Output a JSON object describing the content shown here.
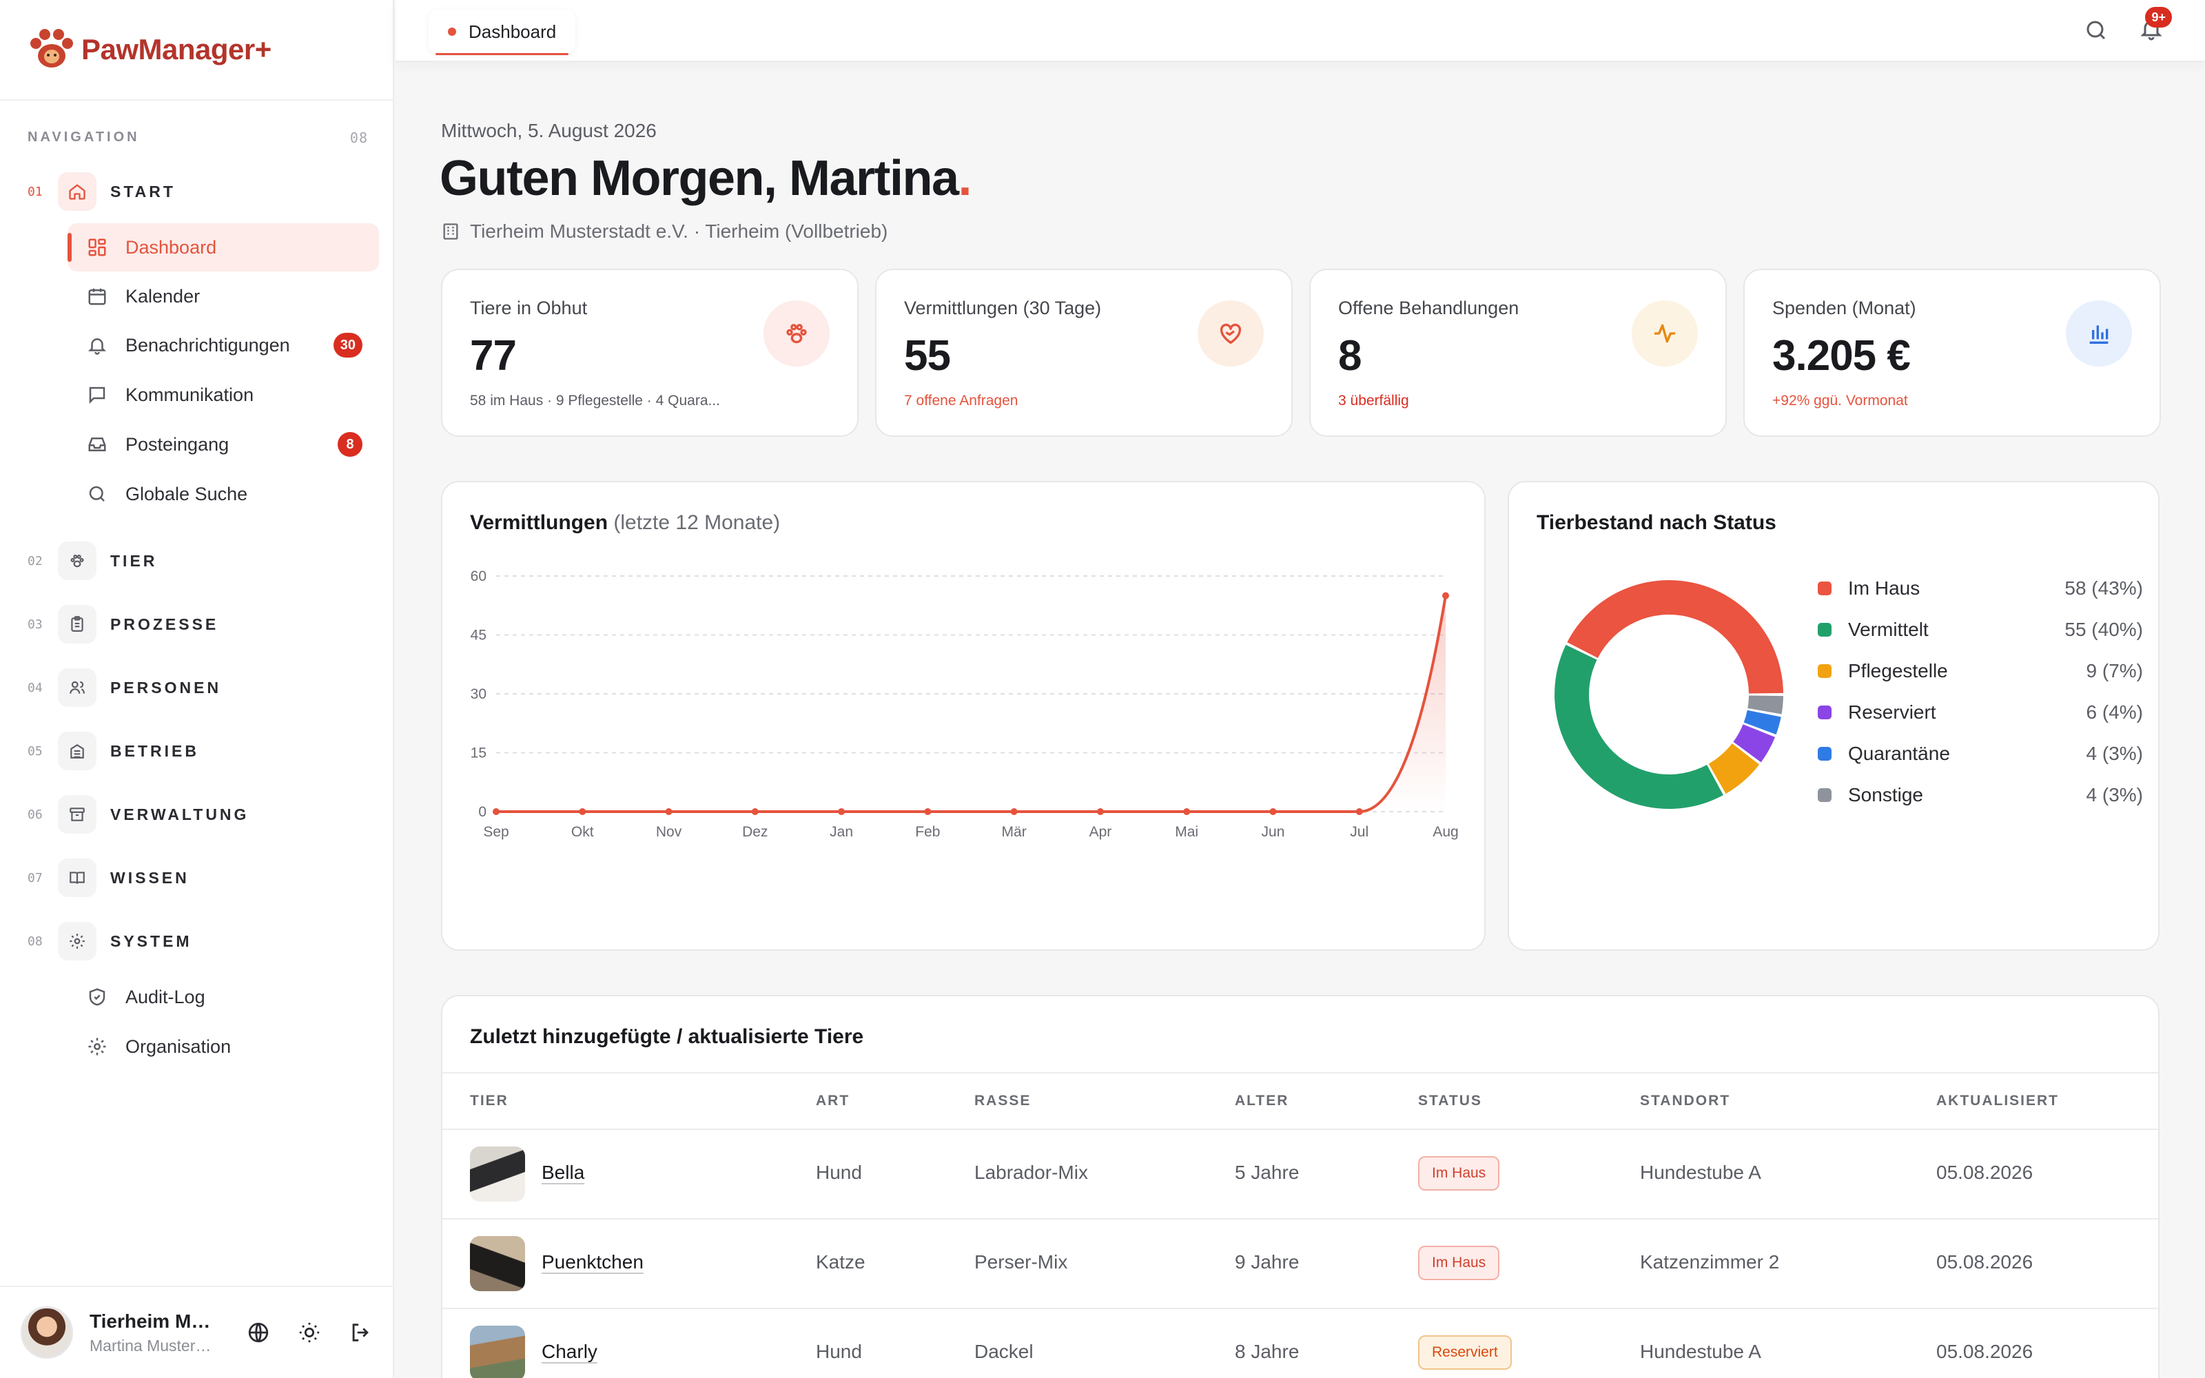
{
  "brand": {
    "name": "PawManager+"
  },
  "nav": {
    "header": "NAVIGATION",
    "count": "08",
    "sections": [
      {
        "num": "01",
        "label": "START",
        "icon": "home-icon"
      },
      {
        "num": "02",
        "label": "TIER",
        "icon": "paw-icon"
      },
      {
        "num": "03",
        "label": "PROZESSE",
        "icon": "clipboard-icon"
      },
      {
        "num": "04",
        "label": "PERSONEN",
        "icon": "users-icon"
      },
      {
        "num": "05",
        "label": "BETRIEB",
        "icon": "building-icon"
      },
      {
        "num": "06",
        "label": "VERWALTUNG",
        "icon": "archive-icon"
      },
      {
        "num": "07",
        "label": "WISSEN",
        "icon": "book-icon"
      },
      {
        "num": "08",
        "label": "SYSTEM",
        "icon": "gear-icon"
      }
    ],
    "start_items": [
      {
        "label": "Dashboard",
        "icon": "grid-icon"
      },
      {
        "label": "Kalender",
        "icon": "calendar-icon"
      },
      {
        "label": "Benachrichtigungen",
        "icon": "bell-icon",
        "badge": "30"
      },
      {
        "label": "Kommunikation",
        "icon": "message-icon"
      },
      {
        "label": "Posteingang",
        "icon": "inbox-icon",
        "badge": "8"
      },
      {
        "label": "Globale Suche",
        "icon": "search-icon"
      }
    ],
    "system_items": [
      {
        "label": "Audit-Log",
        "icon": "shield-icon"
      },
      {
        "label": "Organisation",
        "icon": "gear-icon"
      }
    ]
  },
  "user": {
    "name": "Tierheim Musterstadt e.V.",
    "sub": "Martina Mustermann"
  },
  "topbar": {
    "tab": "Dashboard",
    "notification_badge": "9+"
  },
  "header": {
    "date": "Mittwoch, 5. August 2026",
    "greeting": "Guten Morgen, Martina",
    "org": "Tierheim Musterstadt e.V. · Tierheim (Vollbetrieb)"
  },
  "kpis": [
    {
      "title": "Tiere in Obhut",
      "value": "77",
      "sub": "58 im Haus · 9 Pflegestelle · 4 Quara...",
      "icon": "paw-icon",
      "color": "#e5533d",
      "bg": "#fdecea"
    },
    {
      "title": "Vermittlungen (30 Tage)",
      "value": "55",
      "sub": "7 offene Anfragen",
      "icon": "heart-handshake-icon",
      "color": "#e5533d",
      "bg": "#fdeee3"
    },
    {
      "title": "Offene Behandlungen",
      "value": "8",
      "sub": "3 überfällig",
      "icon": "activity-icon",
      "color": "#e8870e",
      "bg": "#fdf3e2"
    },
    {
      "title": "Spenden (Monat)",
      "value": "3.205 €",
      "sub": "+92% ggü. Vormonat",
      "icon": "bar-chart-icon",
      "color": "#2f6fde",
      "bg": "#e8f0fd"
    }
  ],
  "line_card": {
    "title": "Vermittlungen",
    "title_suffix": "(letzte 12 Monate)"
  },
  "donut_card": {
    "title": "Tierbestand nach Status"
  },
  "chart_data": [
    {
      "type": "area",
      "title": "Vermittlungen (letzte 12 Monate)",
      "categories": [
        "Sep",
        "Okt",
        "Nov",
        "Dez",
        "Jan",
        "Feb",
        "Mär",
        "Apr",
        "Mai",
        "Jun",
        "Jul",
        "Aug"
      ],
      "values": [
        0,
        0,
        0,
        0,
        0,
        0,
        0,
        0,
        0,
        0,
        0,
        55
      ],
      "ylim": [
        0,
        60
      ],
      "yticks": [
        "0",
        "15",
        "30",
        "45",
        "60"
      ],
      "grid": true,
      "color": "#e5533d"
    },
    {
      "type": "pie",
      "title": "Tierbestand nach Status",
      "labels": [
        "Im Haus",
        "Vermittelt",
        "Pflegestelle",
        "Reserviert",
        "Quarantäne",
        "Sonstige"
      ],
      "values": [
        58,
        55,
        9,
        6,
        4,
        4
      ],
      "display": [
        "58 (43%)",
        "55 (40%)",
        "9 (7%)",
        "6 (4%)",
        "4 (3%)",
        "4 (3%)"
      ],
      "colors": [
        "#ea5440",
        "#22a06b",
        "#f2a20e",
        "#8b45e6",
        "#2f7be6",
        "#8e939c"
      ],
      "legend": "right"
    }
  ],
  "table": {
    "title": "Zuletzt hinzugefügte / aktualisierte Tiere",
    "columns": [
      "TIER",
      "ART",
      "RASSE",
      "ALTER",
      "STATUS",
      "STANDORT",
      "AKTUALISIERT"
    ],
    "rows": [
      {
        "name": "Bella",
        "art": "Hund",
        "rasse": "Labrador-Mix",
        "alter": "5 Jahre",
        "status": "Im Haus",
        "standort": "Hundestube A",
        "datum": "05.08.2026"
      },
      {
        "name": "Puenktchen",
        "art": "Katze",
        "rasse": "Perser-Mix",
        "alter": "9 Jahre",
        "status": "Im Haus",
        "standort": "Katzenzimmer 2",
        "datum": "05.08.2026"
      },
      {
        "name": "Charly",
        "art": "Hund",
        "rasse": "Dackel",
        "alter": "8 Jahre",
        "status": "Reserviert",
        "standort": "Hundestube A",
        "datum": "05.08.2026"
      }
    ]
  }
}
